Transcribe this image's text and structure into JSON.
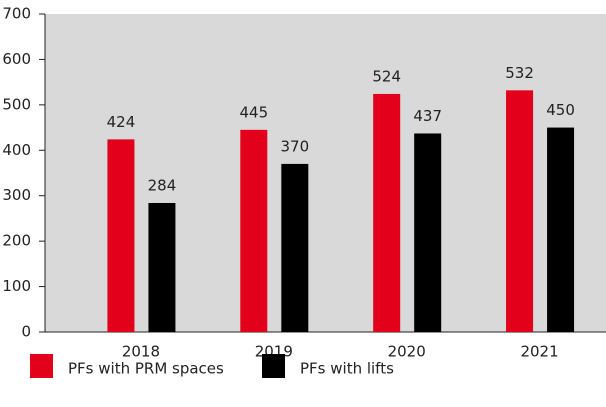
{
  "chart_data": {
    "type": "bar",
    "categories": [
      "2018",
      "2019",
      "2020",
      "2021"
    ],
    "series": [
      {
        "name": "PFs with PRM spaces",
        "color": "#e2001a",
        "values": [
          424,
          445,
          524,
          532
        ]
      },
      {
        "name": "PFs with lifts",
        "color": "#000000",
        "values": [
          284,
          370,
          437,
          450
        ]
      }
    ],
    "ylim": [
      0,
      700
    ],
    "yticks": [
      0,
      100,
      200,
      300,
      400,
      500,
      600,
      700
    ],
    "grid": false,
    "legend": "bottom"
  }
}
